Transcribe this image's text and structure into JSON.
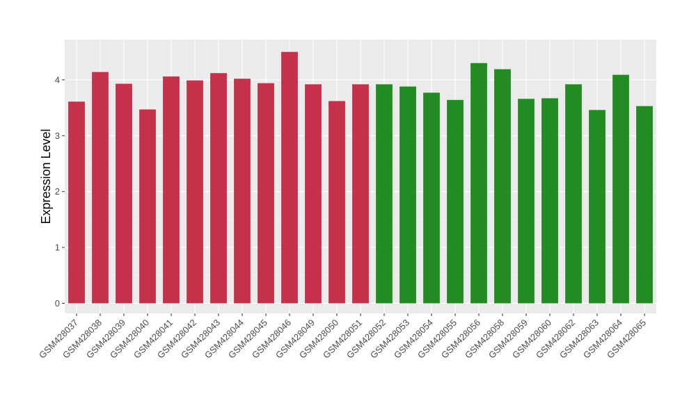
{
  "chart_data": {
    "type": "bar",
    "title": "",
    "xlabel": "",
    "ylabel": "Expression Level",
    "ylim": [
      -0.18,
      4.72
    ],
    "yticks": [
      0,
      1,
      2,
      3,
      4
    ],
    "grid": true,
    "legend": "none",
    "categories": [
      "GSM428037",
      "GSM428038",
      "GSM428039",
      "GSM428040",
      "GSM428041",
      "GSM428042",
      "GSM428043",
      "GSM428044",
      "GSM428045",
      "GSM428046",
      "GSM428049",
      "GSM428050",
      "GSM428051",
      "GSM428052",
      "GSM428053",
      "GSM428054",
      "GSM428055",
      "GSM428056",
      "GSM428058",
      "GSM428059",
      "GSM428060",
      "GSM428062",
      "GSM428063",
      "GSM428064",
      "GSM428065"
    ],
    "values": [
      3.61,
      4.14,
      3.93,
      3.47,
      4.06,
      3.99,
      4.12,
      4.02,
      3.94,
      4.5,
      3.92,
      3.62,
      3.92,
      3.92,
      3.88,
      3.77,
      3.64,
      4.3,
      4.19,
      3.66,
      3.67,
      3.92,
      3.46,
      4.09,
      3.53
    ],
    "groups": [
      "red",
      "red",
      "red",
      "red",
      "red",
      "red",
      "red",
      "red",
      "red",
      "red",
      "red",
      "red",
      "red",
      "green",
      "green",
      "green",
      "green",
      "green",
      "green",
      "green",
      "green",
      "green",
      "green",
      "green",
      "green"
    ]
  },
  "colors": {
    "red": "#c5314a",
    "green": "#228b22",
    "panel": "#ebebeb",
    "grid_major": "#ffffff",
    "grid_minor": "#f5f5f5"
  }
}
